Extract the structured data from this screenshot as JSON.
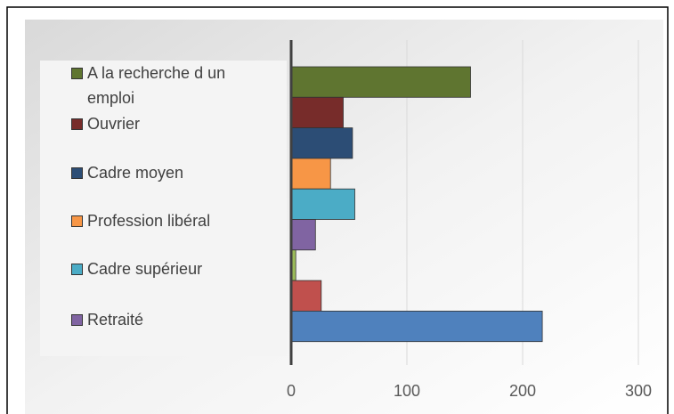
{
  "chart_data": {
    "type": "bar",
    "orientation": "horizontal",
    "series": [
      {
        "name": "A la recherche d un emploi",
        "color": "#5f7530",
        "values": [
          155
        ]
      },
      {
        "name": "Ouvrier",
        "color": "#772c2a",
        "values": [
          45
        ]
      },
      {
        "name": "Cadre moyen",
        "color": "#2c4d75",
        "values": [
          53
        ]
      },
      {
        "name": "Profession libéral",
        "color": "#f79646",
        "values": [
          34
        ]
      },
      {
        "name": "Cadre supérieur",
        "color": "#4bacc6",
        "values": [
          55
        ]
      },
      {
        "name": "Retraité",
        "color": "#8064a2",
        "values": [
          21
        ]
      },
      {
        "color": "#9bbb59",
        "values": [
          4
        ]
      },
      {
        "color": "#c0504d",
        "values": [
          26
        ]
      },
      {
        "color": "#4f81bd",
        "values": [
          217
        ]
      }
    ],
    "xlim": [
      0,
      300
    ],
    "xticks": [
      0,
      100,
      200,
      300
    ],
    "grid": true,
    "legend": "left"
  }
}
